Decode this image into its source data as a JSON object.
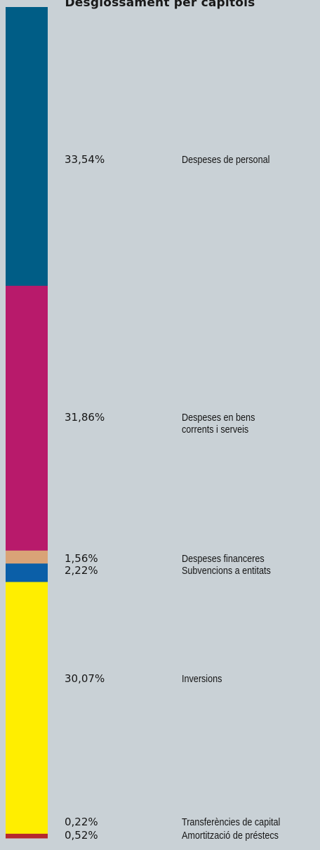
{
  "chart_data": {
    "type": "bar",
    "title": "Desglossament per capítols",
    "orientation": "vertical-stacked",
    "unit": "%",
    "segments": [
      {
        "label": "Despeses de personal",
        "value": 33.54,
        "value_text": "33,54%",
        "color": "#005d86"
      },
      {
        "label": "Despeses en bens corrents i serveis",
        "value": 31.86,
        "value_text": "31,86%",
        "color": "#b81a6b"
      },
      {
        "label": "Despeses financeres",
        "value": 1.56,
        "value_text": "1,56%",
        "color": "#d9a377"
      },
      {
        "label": "Subvencions a entitats",
        "value": 2.22,
        "value_text": "2,22%",
        "color": "#0b5fa8"
      },
      {
        "label": "Inversions",
        "value": 30.07,
        "value_text": "30,07%",
        "color": "#ffee00"
      },
      {
        "label": "Transferències de capital",
        "value": 0.22,
        "value_text": "0,22%",
        "color": "#ffee00"
      },
      {
        "label": "Amortització de préstecs",
        "value": 0.52,
        "value_text": "0,52%",
        "color": "#b5282e"
      }
    ]
  },
  "labels": [
    {
      "pct": "33,54%",
      "lines": [
        "Despeses de personal"
      ]
    },
    {
      "pct": "31,86%",
      "lines": [
        "Despeses en bens",
        "corrents i serveis"
      ]
    },
    {
      "pct": "1,56%",
      "lines": [
        "Despeses financeres"
      ]
    },
    {
      "pct": "2,22%",
      "lines": [
        "Subvencions a entitats"
      ]
    },
    {
      "pct": "30,07%",
      "lines": [
        "Inversions"
      ]
    },
    {
      "pct": "0,22%",
      "lines": [
        "Transferències de capital"
      ]
    },
    {
      "pct": "0,52%",
      "lines": [
        "Amortització de préstecs"
      ]
    }
  ]
}
